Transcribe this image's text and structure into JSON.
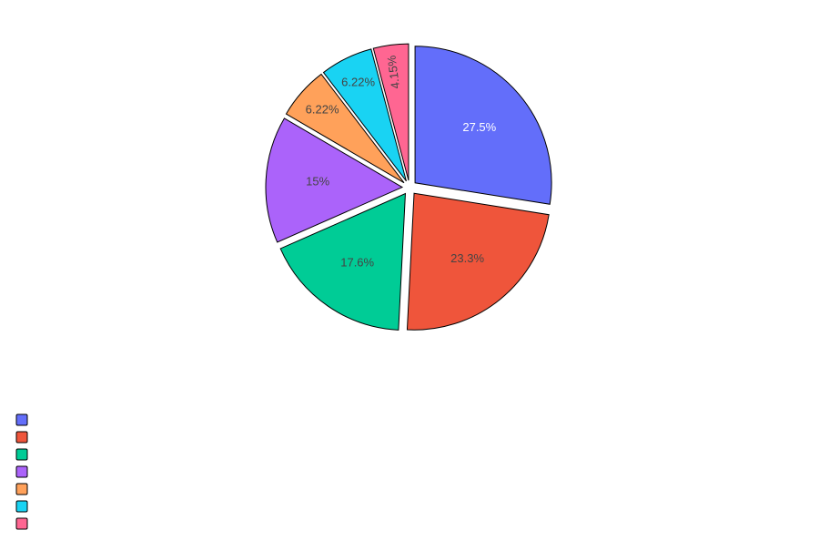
{
  "chart_data": {
    "type": "pie",
    "title": "",
    "slices": [
      {
        "label": "",
        "percent_label": "27.5%",
        "value": 27.5,
        "color": "#636efa",
        "text_color": "#ffffff"
      },
      {
        "label": "",
        "percent_label": "23.3%",
        "value": 23.3,
        "color": "#ef553b",
        "text_color": "#444444"
      },
      {
        "label": "",
        "percent_label": "17.6%",
        "value": 17.6,
        "color": "#00cc96",
        "text_color": "#444444"
      },
      {
        "label": "",
        "percent_label": "15%",
        "value": 15.0,
        "color": "#ab63fa",
        "text_color": "#444444"
      },
      {
        "label": "",
        "percent_label": "6.22%",
        "value": 6.22,
        "color": "#ffa15a",
        "text_color": "#444444"
      },
      {
        "label": "",
        "percent_label": "6.22%",
        "value": 6.22,
        "color": "#19d3f3",
        "text_color": "#444444"
      },
      {
        "label": "",
        "percent_label": "4.15%",
        "value": 4.15,
        "color": "#ff6692",
        "text_color": "#444444"
      }
    ],
    "direction": "clockwise",
    "rotation_start": "12 o'clock",
    "pulled_out": true,
    "slice_outline_color": "#000000",
    "legend_position": "bottom-left"
  }
}
